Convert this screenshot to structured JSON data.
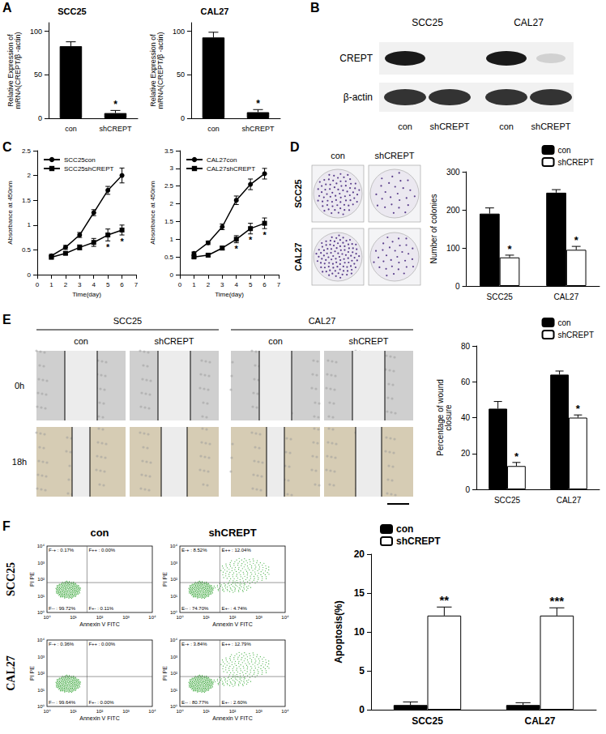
{
  "chart_data": [
    {
      "panel": "A",
      "type": "bar",
      "title": "SCC25",
      "y_label": "Relative Expression of\nmRNA(CREPT/β -actin)",
      "categories": [
        "con",
        "shCREPT"
      ],
      "values": [
        83,
        6
      ],
      "errors": [
        5,
        3
      ],
      "significance": [
        null,
        "*"
      ],
      "color": "#000000",
      "ylim": [
        0,
        110
      ],
      "yticks": [
        0,
        50,
        100
      ],
      "grid": false
    },
    {
      "type": "bar",
      "title": "CAL27",
      "y_label": "Relative Expression of\nmRNA(CREPT/β -actin)",
      "categories": [
        "con",
        "shCREPT"
      ],
      "values": [
        93,
        7
      ],
      "errors": [
        6,
        3
      ],
      "significance": [
        null,
        "*"
      ],
      "color": "#000000",
      "ylim": [
        0,
        110
      ],
      "yticks": [
        0,
        50,
        100
      ],
      "grid": false
    },
    {
      "panel": "C",
      "type": "line",
      "x_label": "Time(day)",
      "y_label": "Absorbance at 450nm",
      "x": [
        1,
        2,
        3,
        4,
        5,
        6
      ],
      "xlim": [
        0,
        7
      ],
      "xticks": [
        0,
        1,
        2,
        3,
        4,
        5,
        6,
        7
      ],
      "ylim": [
        0,
        2.5
      ],
      "yticks": [
        0,
        0.5,
        1,
        1.5,
        2,
        2.5
      ],
      "grid": false,
      "legend": "upper left",
      "series": [
        {
          "name": "SCC25con",
          "color": "#000000",
          "marker": "circle",
          "values": [
            0.38,
            0.55,
            0.8,
            1.25,
            1.7,
            2.0
          ],
          "errors": [
            0.03,
            0.04,
            0.05,
            0.06,
            0.08,
            0.15
          ]
        },
        {
          "name": "SCC25shCREPT",
          "color": "#000000",
          "marker": "square",
          "values": [
            0.35,
            0.43,
            0.55,
            0.65,
            0.8,
            0.9
          ],
          "errors": [
            0.03,
            0.03,
            0.05,
            0.08,
            0.12,
            0.1
          ],
          "significance": [
            null,
            null,
            null,
            null,
            "*",
            "*"
          ]
        }
      ]
    },
    {
      "type": "line",
      "x_label": "Time(day)",
      "y_label": "Absorbance at 450nm",
      "x": [
        1,
        2,
        3,
        4,
        5,
        6
      ],
      "xlim": [
        0,
        7
      ],
      "xticks": [
        0,
        1,
        2,
        3,
        4,
        5,
        6,
        7
      ],
      "ylim": [
        0,
        3.5
      ],
      "yticks": [
        0,
        0.5,
        1,
        1.5,
        2,
        2.5,
        3,
        3.5
      ],
      "grid": false,
      "legend": "upper left",
      "series": [
        {
          "name": "CAL27con",
          "color": "#000000",
          "marker": "circle",
          "values": [
            0.6,
            0.9,
            1.35,
            2.1,
            2.55,
            2.85
          ],
          "errors": [
            0.04,
            0.05,
            0.08,
            0.12,
            0.15,
            0.15
          ]
        },
        {
          "name": "CAL27shCREPT",
          "color": "#000000",
          "marker": "square",
          "values": [
            0.5,
            0.55,
            0.75,
            1.0,
            1.3,
            1.45
          ],
          "errors": [
            0.03,
            0.04,
            0.05,
            0.1,
            0.15,
            0.15
          ],
          "significance": [
            null,
            null,
            null,
            "*",
            "*",
            "*"
          ]
        }
      ]
    },
    {
      "type": "bar",
      "y_label": "Number of colonies",
      "categories": [
        "SCC25",
        "CAL27"
      ],
      "ylim": [
        0,
        300
      ],
      "yticks": [
        0,
        100,
        200,
        300
      ],
      "grid": false,
      "legend": "upper right",
      "series": [
        {
          "name": "con",
          "color": "#000000",
          "values": [
            190,
            245
          ],
          "errors": [
            15,
            8
          ]
        },
        {
          "name": "shCREPT",
          "color": "#ffffff",
          "values": [
            75,
            95
          ],
          "errors": [
            6,
            9
          ],
          "significance": [
            "*",
            "*"
          ]
        }
      ]
    },
    {
      "type": "bar",
      "y_label": "Percentage of wound\nclosure",
      "categories": [
        "SCC25",
        "CAL27"
      ],
      "ylim": [
        0,
        80
      ],
      "yticks": [
        0,
        20,
        40,
        60,
        80
      ],
      "grid": false,
      "legend": "upper right",
      "series": [
        {
          "name": "con",
          "color": "#000000",
          "values": [
            45,
            64
          ],
          "errors": [
            4,
            2
          ]
        },
        {
          "name": "shCREPT",
          "color": "#ffffff",
          "values": [
            13,
            40
          ],
          "errors": [
            2,
            1.5
          ],
          "significance": [
            "*",
            "*"
          ]
        }
      ]
    },
    {
      "type": "bar",
      "y_label": "Apoptosis(%)",
      "categories": [
        "SCC25",
        "CAL27"
      ],
      "ylim": [
        0,
        20
      ],
      "yticks": [
        0,
        5,
        10,
        15,
        20
      ],
      "grid": false,
      "legend": "upper left",
      "series": [
        {
          "name": "con",
          "color": "#000000",
          "values": [
            0.6,
            0.6
          ],
          "errors": [
            0.4,
            0.3
          ]
        },
        {
          "name": "shCREPT",
          "color": "#ffffff",
          "values": [
            12.1,
            12.1
          ],
          "errors": [
            1.1,
            1.0
          ],
          "significance": [
            "**",
            "***"
          ]
        }
      ]
    }
  ],
  "images": [
    {
      "panel": "B",
      "type": "western_blot",
      "cell_lines": [
        "SCC25",
        "CAL27"
      ],
      "rows": [
        "CREPT",
        "β-actin"
      ],
      "lanes": [
        "con",
        "shCREPT",
        "con",
        "shCREPT"
      ]
    },
    {
      "panel": "D",
      "type": "colony_photos",
      "columns": [
        "con",
        "shCREPT"
      ],
      "rows": [
        "SCC25",
        "CAL27"
      ]
    },
    {
      "panel": "E",
      "type": "wound_photos",
      "cell_lines": [
        "SCC25",
        "CAL27"
      ],
      "columns": [
        "con",
        "shCREPT"
      ],
      "rows": [
        "0h",
        "18h"
      ]
    },
    {
      "panel": "F",
      "type": "flow_cytometry",
      "columns": [
        "con",
        "shCREPT"
      ],
      "rows": [
        "SCC25",
        "CAL27"
      ],
      "x_label": "Annexin V FITC",
      "y_label": "PI PE",
      "ticks": [
        "10⁰",
        "10¹",
        "10²",
        "10³",
        "10⁴"
      ],
      "quadrants": [
        [
          [
            "F-+ : 0.17%",
            "F++ : 0.00%",
            "F-- : 99.72%",
            "F+- : 0.11%"
          ],
          [
            "E-+ : 8.52%",
            "E++ : 12.04%",
            "E-- : 74.70%",
            "E+- : 4.74%"
          ]
        ],
        [
          [
            "F-+ : 0.36%",
            "F++ : 0.00%",
            "F-- : 99.64%",
            "F+- : 0.00%"
          ],
          [
            "E-+ : 3.84%",
            "E++ : 12.79%",
            "E-- : 80.77%",
            "E+- : 2.60%"
          ]
        ]
      ]
    }
  ]
}
